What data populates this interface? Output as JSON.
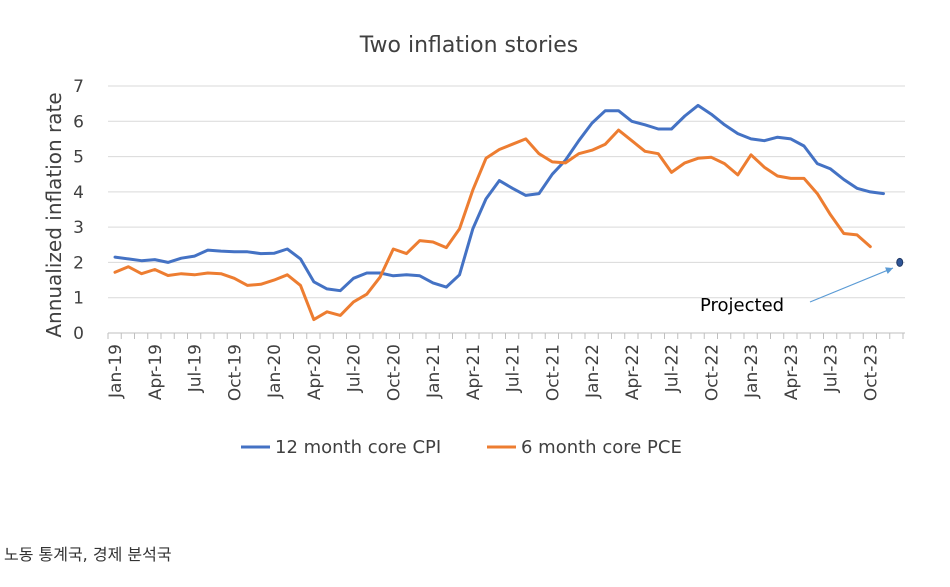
{
  "chart_data": {
    "type": "line",
    "title": "Two inflation stories",
    "ylabel": "Annualized inflation rate",
    "xlabel": "",
    "ylim": [
      0,
      7
    ],
    "yticks": [
      0,
      1,
      2,
      3,
      4,
      5,
      6,
      7
    ],
    "grid": "horizontal",
    "legend_position": "bottom",
    "x": [
      "2019-01",
      "2019-02",
      "2019-03",
      "2019-04",
      "2019-05",
      "2019-06",
      "2019-07",
      "2019-08",
      "2019-09",
      "2019-10",
      "2019-11",
      "2019-12",
      "2020-01",
      "2020-02",
      "2020-03",
      "2020-04",
      "2020-05",
      "2020-06",
      "2020-07",
      "2020-08",
      "2020-09",
      "2020-10",
      "2020-11",
      "2020-12",
      "2021-01",
      "2021-02",
      "2021-03",
      "2021-04",
      "2021-05",
      "2021-06",
      "2021-07",
      "2021-08",
      "2021-09",
      "2021-10",
      "2021-11",
      "2021-12",
      "2022-01",
      "2022-02",
      "2022-03",
      "2022-04",
      "2022-05",
      "2022-06",
      "2022-07",
      "2022-08",
      "2022-09",
      "2022-10",
      "2022-11",
      "2022-12",
      "2023-01",
      "2023-02",
      "2023-03",
      "2023-04",
      "2023-05",
      "2023-06",
      "2023-07",
      "2023-08",
      "2023-09",
      "2023-10",
      "2023-11",
      "2023-12"
    ],
    "xtick_labels": [
      "Jan-19",
      "Apr-19",
      "Jul-19",
      "Oct-19",
      "Jan-20",
      "Apr-20",
      "Jul-20",
      "Oct-20",
      "Jan-21",
      "Apr-21",
      "Jul-21",
      "Oct-21",
      "Jan-22",
      "Apr-22",
      "Jul-22",
      "Oct-22",
      "Jan-23",
      "Apr-23",
      "Jul-23",
      "Oct-23"
    ],
    "series": [
      {
        "name": "12 month core CPI",
        "color": "#4472C4",
        "values": [
          2.15,
          2.1,
          2.05,
          2.08,
          2.0,
          2.12,
          2.18,
          2.35,
          2.32,
          2.3,
          2.3,
          2.25,
          2.26,
          2.38,
          2.1,
          1.45,
          1.25,
          1.2,
          1.55,
          1.7,
          1.7,
          1.62,
          1.65,
          1.62,
          1.42,
          1.3,
          1.65,
          2.95,
          3.8,
          4.32,
          4.1,
          3.9,
          3.95,
          4.5,
          4.9,
          5.45,
          5.95,
          6.3,
          6.3,
          6.0,
          5.9,
          5.78,
          5.78,
          6.15,
          6.45,
          6.2,
          5.9,
          5.65,
          5.5,
          5.45,
          5.55,
          5.5,
          5.3,
          4.8,
          4.65,
          4.35,
          4.1,
          4.0,
          3.95,
          null
        ]
      },
      {
        "name": "6 month core PCE",
        "color": "#ED7D31",
        "values": [
          1.72,
          1.88,
          1.68,
          1.8,
          1.63,
          1.68,
          1.65,
          1.7,
          1.68,
          1.55,
          1.35,
          1.38,
          1.5,
          1.65,
          1.35,
          0.38,
          0.6,
          0.5,
          0.88,
          1.1,
          1.58,
          2.38,
          2.25,
          2.62,
          2.58,
          2.42,
          2.95,
          4.05,
          4.95,
          5.2,
          5.35,
          5.5,
          5.08,
          4.85,
          4.82,
          5.08,
          5.18,
          5.35,
          5.75,
          5.45,
          5.15,
          5.08,
          4.55,
          4.82,
          4.95,
          4.98,
          4.8,
          4.48,
          5.05,
          4.7,
          4.45,
          4.38,
          4.38,
          3.95,
          3.35,
          2.82,
          2.78,
          2.45,
          null,
          null
        ]
      }
    ],
    "projected_point": {
      "x": "2023-12",
      "y": 2.0,
      "color": "#2F5597"
    },
    "annotation": {
      "text": "Projected"
    }
  },
  "source": "노동 통계국, 경제 분석국"
}
